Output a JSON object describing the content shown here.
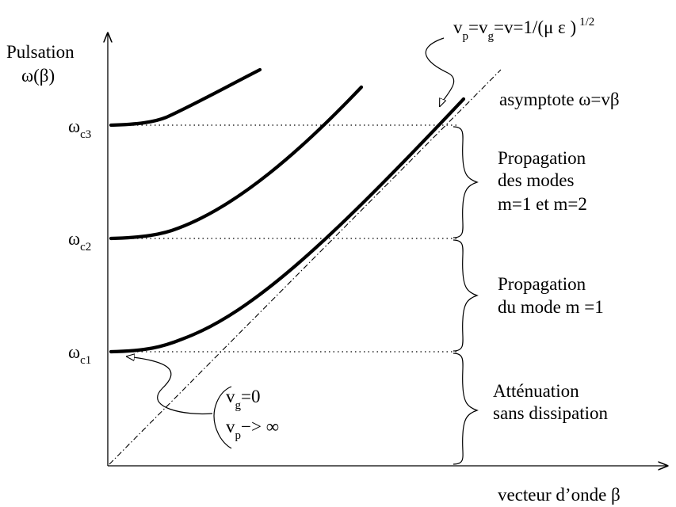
{
  "axes": {
    "y_label_line1": "Pulsation",
    "y_label_line2": "ω(β)",
    "x_label": "vecteur d’onde β"
  },
  "cutoffs": [
    {
      "main": "ω",
      "sub": "c1"
    },
    {
      "main": "ω",
      "sub": "c2"
    },
    {
      "main": "ω",
      "sub": "c3"
    }
  ],
  "velocity_note": {
    "v": "v",
    "p_sub": "p",
    "eq1": "=v",
    "g_sub": "g",
    "eq2": "=v=1/(μ ε )",
    "exponent": "1/2"
  },
  "asymptote_label": "asymptote  ω=vβ",
  "regions": {
    "top": [
      "Propagation",
      "des modes",
      "m=1 et m=2"
    ],
    "middle": [
      "Propagation",
      "du mode m =1"
    ],
    "bottom": [
      "Atténuation",
      "sans dissipation"
    ]
  },
  "group_velocity_note": {
    "vg_main": "v",
    "vg_sub": "g",
    "vg_rest": "=0",
    "vp_main": "v",
    "vp_sub": "p",
    "vp_rest": "−> ∞"
  }
}
